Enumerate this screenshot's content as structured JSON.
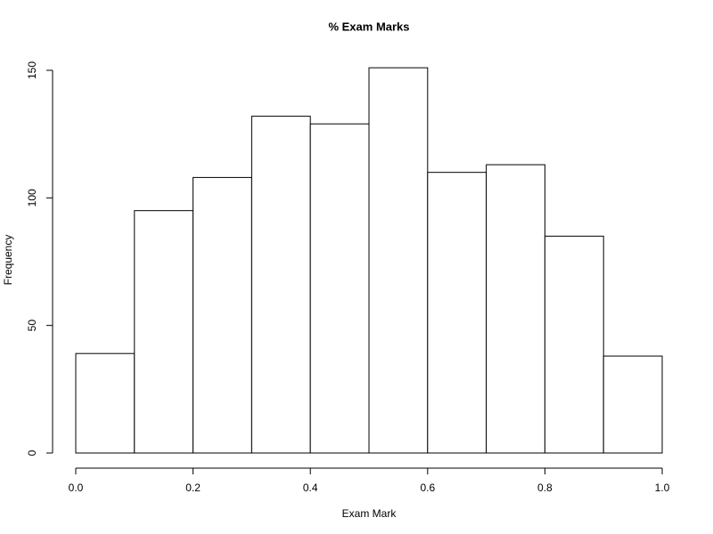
{
  "chart_data": {
    "type": "histogram",
    "title": "% Exam Marks",
    "x_label": "Exam Mark",
    "y_label": "Frequency",
    "bins": [
      0,
      0.1,
      0.2,
      0.3,
      0.4,
      0.5,
      0.6,
      0.7,
      0.8,
      0.9,
      1
    ],
    "values": [
      39,
      95,
      108,
      132,
      129,
      151,
      110,
      113,
      85,
      38
    ],
    "color": "#ffffff",
    "edgecolor": "#000000",
    "xlim": [
      0,
      1
    ],
    "xticks": [
      {
        "value": 0,
        "label": "0.0"
      },
      0.2,
      0.4,
      0.6,
      0.8,
      {
        "value": 1,
        "label": "1.0"
      }
    ],
    "ylim": [
      0,
      150
    ],
    "yticks": [
      0,
      50,
      100,
      150
    ],
    "grid": false
  }
}
